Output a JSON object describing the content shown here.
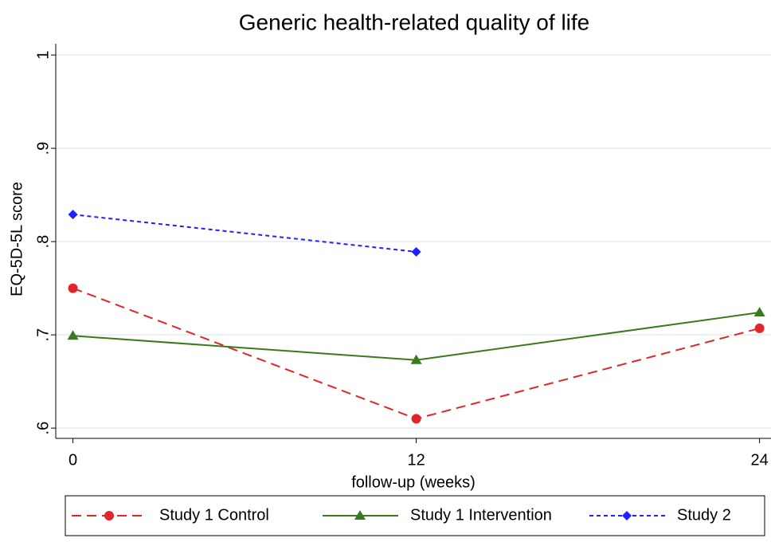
{
  "chart_data": {
    "type": "line",
    "title": "Generic health-related quality of life",
    "x_label": "follow-up (weeks)",
    "y_label": "EQ-5D-5L score",
    "x": [
      0,
      12,
      24
    ],
    "xlim": [
      -0.6,
      24.4
    ],
    "xticks": [
      0,
      12,
      24
    ],
    "ylim": [
      0.589,
      1.012
    ],
    "yticks": [
      {
        "value": 0.6,
        "label": ".6"
      },
      {
        "value": 0.7,
        "label": ".7"
      },
      {
        "value": 0.8,
        "label": ".8"
      },
      {
        "value": 0.9,
        "label": ".9"
      },
      {
        "value": 1,
        "label": "1"
      }
    ],
    "grid": true,
    "legend": "bottom",
    "series": [
      {
        "name": "Study 1 Control",
        "color": "#e0262b",
        "line_style": "dashed",
        "marker": "circle",
        "values": [
          0.75,
          0.61,
          0.707
        ]
      },
      {
        "name": "Study 1 Intervention",
        "color": "#3a7a1c",
        "line_style": "solid",
        "marker": "triangle",
        "values": [
          0.699,
          0.673,
          0.724
        ]
      },
      {
        "name": "Study 2",
        "color": "#2020ff",
        "line_style": "dotted",
        "marker": "diamond",
        "values": [
          0.829,
          0.789,
          null
        ]
      }
    ]
  }
}
